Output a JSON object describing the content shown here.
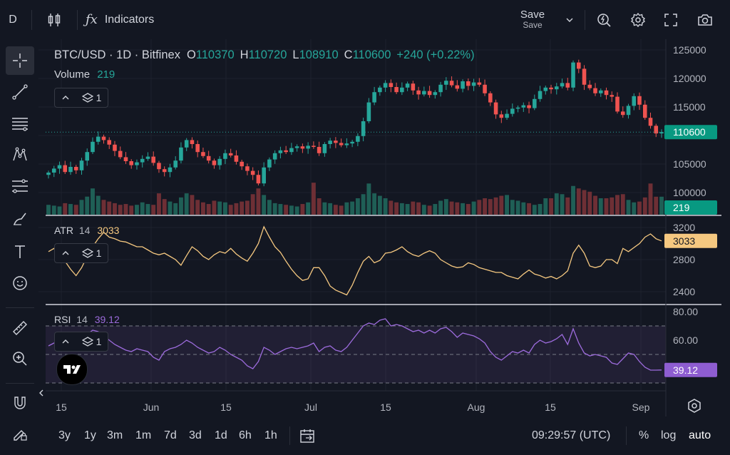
{
  "toolbar": {
    "interval": "D",
    "indicators_label": "Indicators",
    "save_label": "Save",
    "save_sub": "Save"
  },
  "legend": {
    "symbol": "BTC/USD · 1D · Bitfinex",
    "o_label": "O",
    "o_value": "110370",
    "h_label": "H",
    "h_value": "110720",
    "l_label": "L",
    "l_value": "108910",
    "c_label": "C",
    "c_value": "110600",
    "change": "+240 (+0.22%)",
    "volume_label": "Volume",
    "volume_value": "219",
    "pane_count": "1"
  },
  "atr": {
    "label": "ATR",
    "period": "14",
    "value": "3033",
    "pane_count": "1"
  },
  "rsi": {
    "label": "RSI",
    "period": "14",
    "value": "39.12",
    "pane_count": "1"
  },
  "price_axis": {
    "ticks": [
      "125000",
      "120000",
      "115000",
      "110000",
      "105000",
      "100000"
    ],
    "current": "110600",
    "volume_current": "219"
  },
  "atr_axis": {
    "ticks": [
      "3200",
      "2800",
      "2400"
    ],
    "current": "3033"
  },
  "rsi_axis": {
    "ticks": [
      "80.00",
      "60.00"
    ],
    "current": "39.12"
  },
  "time_axis": [
    "15",
    "Jun",
    "15",
    "Jul",
    "15",
    "Aug",
    "15",
    "Sep"
  ],
  "bottom": {
    "ranges": [
      "3y",
      "1y",
      "3m",
      "1m",
      "7d",
      "3d",
      "1d",
      "6h",
      "1h"
    ],
    "clock": "09:29:57 (UTC)",
    "percent": "%",
    "log": "log",
    "auto": "auto"
  },
  "colors": {
    "up": "#26a69a",
    "down": "#ef5350",
    "atr": "#f5c880",
    "rsi": "#9c6bdc",
    "background": "#131722"
  },
  "chart_data": [
    {
      "type": "candlestick",
      "title": "BTC/USD · 1D · Bitfinex",
      "ylim": [
        98000,
        126000
      ],
      "x_ticks": [
        "15",
        "Jun",
        "15",
        "Jul",
        "15",
        "Aug",
        "15",
        "Sep"
      ],
      "series": [
        {
          "name": "Close",
          "values": [
            103500,
            104200,
            104800,
            103600,
            104500,
            103900,
            105600,
            107100,
            108900,
            109800,
            109200,
            108400,
            107300,
            106200,
            105500,
            104800,
            105300,
            105900,
            106300,
            105200,
            104100,
            103600,
            104400,
            105600,
            107900,
            109200,
            108500,
            107100,
            106400,
            105600,
            104800,
            105900,
            106900,
            106500,
            105400,
            104600,
            103800,
            103100,
            101600,
            104400,
            105800,
            106900,
            107400,
            107100,
            107800,
            108100,
            107700,
            108200,
            108000,
            106900,
            108500,
            109100,
            108700,
            108300,
            108600,
            108900,
            109900,
            112500,
            115800,
            117600,
            118400,
            119200,
            118500,
            117600,
            118400,
            119100,
            117900,
            117200,
            117800,
            117100,
            117600,
            118900,
            119600,
            118800,
            118200,
            119500,
            118700,
            119300,
            118900,
            117400,
            115800,
            113700,
            113100,
            113800,
            114700,
            114900,
            115300,
            114800,
            116400,
            117800,
            118400,
            118100,
            118600,
            119200,
            118400,
            122800,
            121700,
            118900,
            118300,
            117400,
            117900,
            117100,
            116800,
            114200,
            113600,
            115200,
            116900,
            115400,
            113100,
            111700,
            110360,
            110600
          ]
        },
        {
          "name": "Volume",
          "values": [
            120,
            110,
            100,
            140,
            130,
            120,
            180,
            220,
            320,
            230,
            180,
            160,
            140,
            120,
            130,
            110,
            120,
            150,
            130,
            120,
            260,
            190,
            160,
            140,
            210,
            260,
            240,
            180,
            150,
            130,
            170,
            160,
            150,
            120,
            140,
            160,
            170,
            250,
            320,
            240,
            180,
            140,
            130,
            120,
            110,
            100,
            130,
            150,
            390,
            200,
            150,
            140,
            120,
            110,
            150,
            160,
            200,
            250,
            380,
            260,
            230,
            200,
            170,
            150,
            140,
            130,
            160,
            150,
            120,
            110,
            130,
            170,
            190,
            160,
            150,
            140,
            130,
            160,
            180,
            200,
            190,
            210,
            230,
            240,
            180,
            170,
            150,
            140,
            120,
            130,
            200,
            200,
            260,
            250,
            210,
            350,
            320,
            300,
            280,
            230,
            200,
            200,
            210,
            240,
            250,
            180,
            150,
            160,
            210,
            380,
            219,
            219
          ]
        }
      ]
    },
    {
      "type": "line",
      "title": "ATR 14",
      "ylim": [
        2300,
        3250
      ],
      "series": [
        {
          "name": "ATR",
          "values": [
            2900,
            2940,
            2880,
            2780,
            2680,
            2600,
            2700,
            2840,
            2960,
            3060,
            3140,
            3080,
            3060,
            3030,
            3020,
            2990,
            2960,
            2960,
            2920,
            2880,
            2860,
            2880,
            2840,
            2800,
            2730,
            2850,
            2960,
            2910,
            2840,
            2800,
            2860,
            2900,
            2880,
            2940,
            2870,
            2820,
            2780,
            2880,
            3000,
            3210,
            3080,
            2960,
            2890,
            2780,
            2680,
            2600,
            2540,
            2560,
            2700,
            2700,
            2600,
            2470,
            2420,
            2390,
            2360,
            2480,
            2640,
            2780,
            2840,
            2760,
            2790,
            2880,
            2890,
            2920,
            2960,
            2900,
            2860,
            2840,
            2880,
            2910,
            2880,
            2800,
            2760,
            2720,
            2700,
            2710,
            2760,
            2740,
            2700,
            2680,
            2660,
            2640,
            2640,
            2600,
            2580,
            2560,
            2620,
            2670,
            2620,
            2600,
            2570,
            2590,
            2560,
            2600,
            2660,
            2880,
            2980,
            2880,
            2720,
            2700,
            2720,
            2800,
            2800,
            2750,
            2940,
            2900,
            2950,
            3000,
            3080,
            3120,
            3060,
            3033
          ]
        }
      ]
    },
    {
      "type": "line",
      "title": "RSI 14",
      "ylim": [
        30,
        80
      ],
      "series": [
        {
          "name": "RSI",
          "values": [
            56,
            58,
            60,
            57,
            59,
            58,
            61,
            64,
            67,
            66,
            63,
            60,
            57,
            55,
            53,
            52,
            54,
            53,
            52,
            48,
            46,
            52,
            54,
            55,
            57,
            60,
            58,
            55,
            53,
            51,
            52,
            55,
            53,
            50,
            48,
            46,
            42,
            40,
            45,
            55,
            53,
            50,
            52,
            54,
            55,
            54,
            55,
            56,
            58,
            52,
            55,
            56,
            53,
            52,
            55,
            60,
            65,
            70,
            72,
            71,
            74,
            75,
            70,
            71,
            70,
            68,
            66,
            67,
            65,
            67,
            65,
            68,
            69,
            66,
            62,
            65,
            64,
            63,
            61,
            58,
            52,
            48,
            46,
            49,
            52,
            51,
            53,
            51,
            57,
            60,
            58,
            59,
            61,
            64,
            57,
            68,
            58,
            51,
            49,
            50,
            49,
            48,
            44,
            43,
            47,
            51,
            50,
            45,
            41,
            39,
            39,
            39.12
          ]
        }
      ]
    }
  ]
}
